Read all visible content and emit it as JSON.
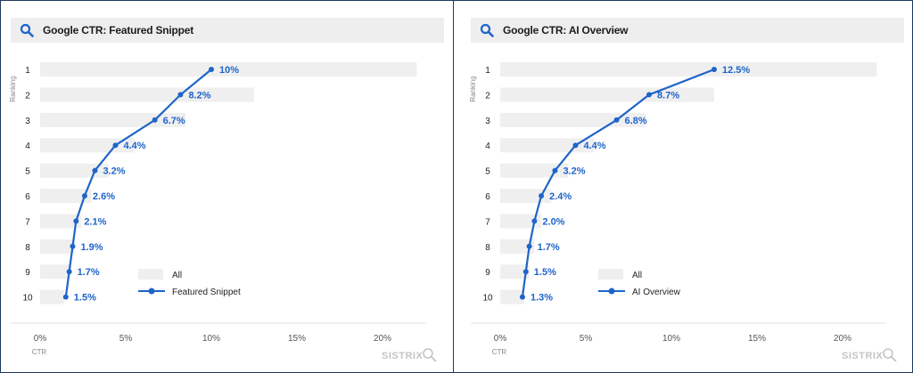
{
  "panels": [
    {
      "title": "Google CTR: Featured Snippet",
      "search_icon": "search-icon",
      "chart_data": {
        "type": "line",
        "ylabel": "Ranking",
        "xlabel": "CTR",
        "categories": [
          "1",
          "2",
          "3",
          "4",
          "5",
          "6",
          "7",
          "8",
          "9",
          "10"
        ],
        "xlim": [
          0,
          22
        ],
        "x_ticks": [
          0,
          5,
          10,
          15,
          20
        ],
        "x_tick_labels": [
          "0%",
          "5%",
          "10%",
          "15%",
          "20%"
        ],
        "series": [
          {
            "name": "All",
            "kind": "bar",
            "color": "#efefef",
            "values": [
              22.0,
              12.5,
              8.5,
              5.5,
              4.0,
              3.0,
              2.4,
              2.0,
              1.7,
              1.4
            ]
          },
          {
            "name": "Featured Snippet",
            "kind": "line",
            "color": "#1f64c8",
            "values": [
              10,
              8.2,
              6.7,
              4.4,
              3.2,
              2.6,
              2.1,
              1.9,
              1.7,
              1.5
            ],
            "labels": [
              "10%",
              "8.2%",
              "6.7%",
              "4.4%",
              "3.2%",
              "2.6%",
              "2.1%",
              "1.9%",
              "1.7%",
              "1.5%"
            ]
          }
        ],
        "legend": "bottom-left",
        "grid": false
      },
      "watermark": "SISTRIX"
    },
    {
      "title": "Google CTR: AI Overview",
      "search_icon": "search-icon",
      "chart_data": {
        "type": "line",
        "ylabel": "Ranking",
        "xlabel": "CTR",
        "categories": [
          "1",
          "2",
          "3",
          "4",
          "5",
          "6",
          "7",
          "8",
          "9",
          "10"
        ],
        "xlim": [
          0,
          22
        ],
        "x_ticks": [
          0,
          5,
          10,
          15,
          20
        ],
        "x_tick_labels": [
          "0%",
          "5%",
          "10%",
          "15%",
          "20%"
        ],
        "series": [
          {
            "name": "All",
            "kind": "bar",
            "color": "#efefef",
            "values": [
              22.0,
              12.5,
              8.5,
              5.5,
              4.0,
              3.0,
              2.4,
              2.0,
              1.7,
              1.4
            ]
          },
          {
            "name": "AI Overview",
            "kind": "line",
            "color": "#1f64c8",
            "values": [
              12.5,
              8.7,
              6.8,
              4.4,
              3.2,
              2.4,
              2.0,
              1.7,
              1.5,
              1.3
            ],
            "labels": [
              "12.5%",
              "8.7%",
              "6.8%",
              "4.4%",
              "3.2%",
              "2.4%",
              "2.0%",
              "1.7%",
              "1.5%",
              "1.3%"
            ]
          }
        ],
        "legend": "bottom-left",
        "grid": false
      },
      "watermark": "SISTRIX"
    }
  ]
}
